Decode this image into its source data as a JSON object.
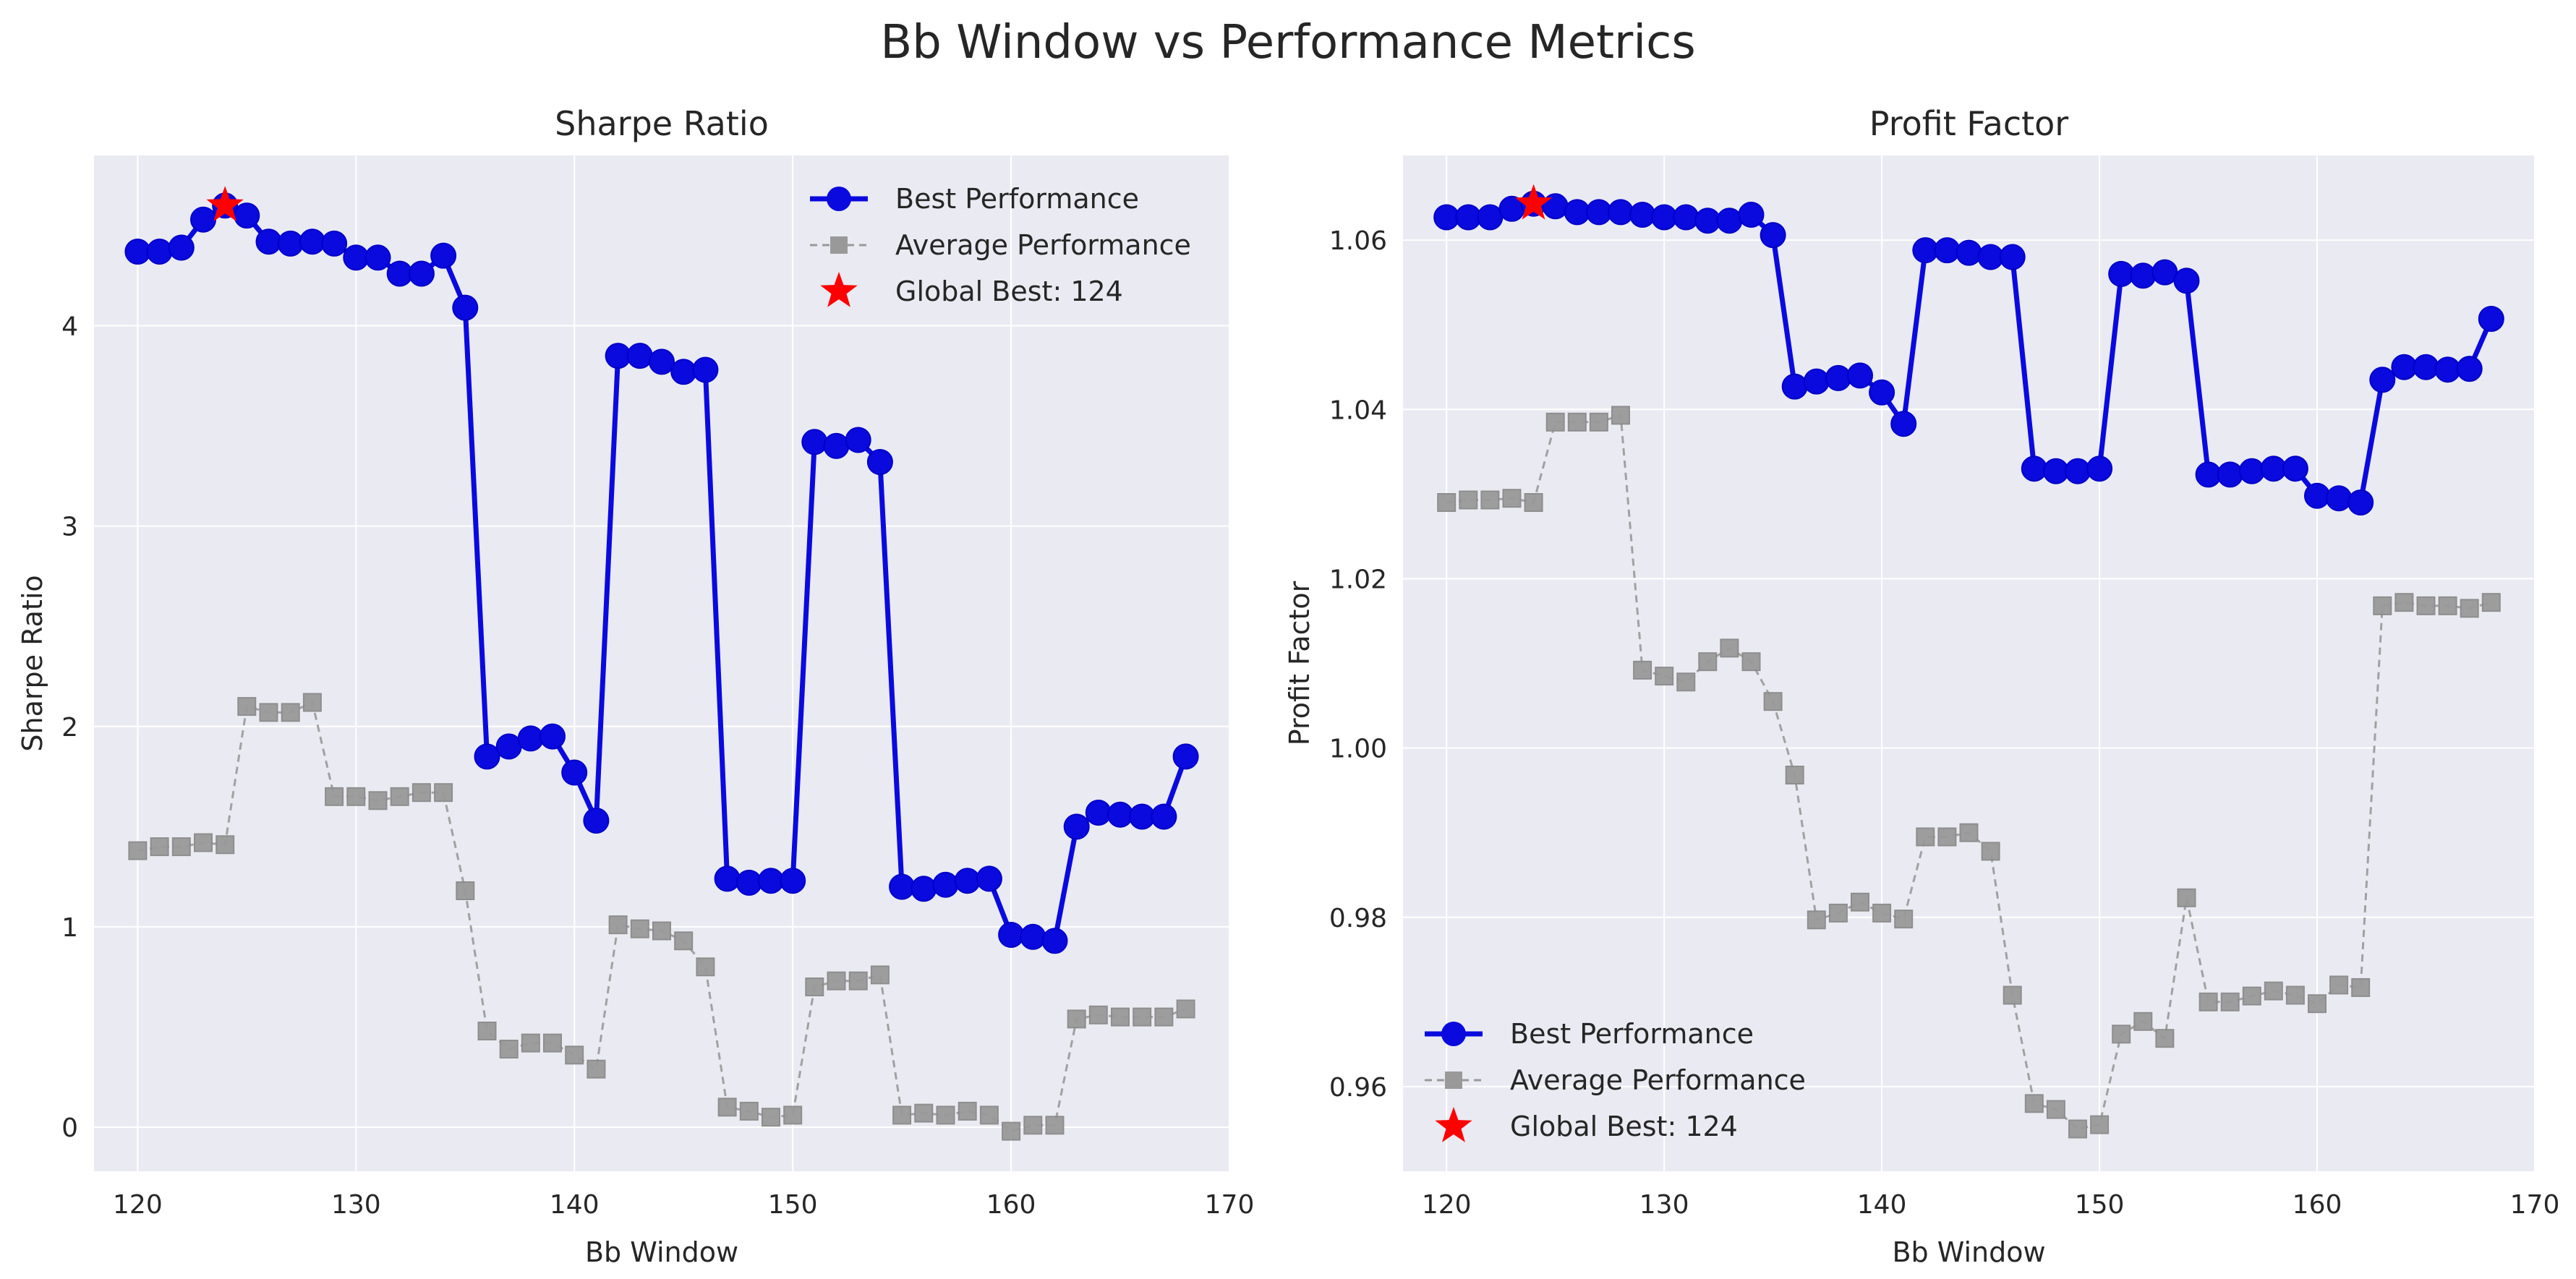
{
  "figure": {
    "title": "Bb Window vs Performance Metrics"
  },
  "colors": {
    "best": "#0a0adf",
    "average": "#999999",
    "global_best": "#ff0000",
    "plot_bg": "#eaeaf2",
    "grid": "#ffffff"
  },
  "chart_data": [
    {
      "type": "line",
      "title": "Sharpe Ratio",
      "xlabel": "Bb Window",
      "ylabel": "Sharpe Ratio",
      "xlim": [
        118,
        170
      ],
      "ylim": [
        -0.22,
        4.85
      ],
      "xticks": [
        120,
        130,
        140,
        150,
        160,
        170
      ],
      "yticks": [
        0,
        1,
        2,
        3,
        4
      ],
      "grid": true,
      "legend_position": "top-right",
      "x": [
        120,
        121,
        122,
        123,
        124,
        125,
        126,
        127,
        128,
        129,
        130,
        131,
        132,
        133,
        134,
        135,
        136,
        137,
        138,
        139,
        140,
        141,
        142,
        143,
        144,
        145,
        146,
        147,
        148,
        149,
        150,
        151,
        152,
        153,
        154,
        155,
        156,
        157,
        158,
        159,
        160,
        161,
        162,
        163,
        164,
        165,
        166,
        167,
        168
      ],
      "series": [
        {
          "name": "Best Performance",
          "style": "solid-circle",
          "values": [
            4.37,
            4.37,
            4.39,
            4.53,
            4.6,
            4.55,
            4.42,
            4.41,
            4.42,
            4.41,
            4.34,
            4.34,
            4.26,
            4.26,
            4.35,
            4.09,
            1.85,
            1.9,
            1.94,
            1.95,
            1.77,
            1.53,
            3.85,
            3.85,
            3.82,
            3.77,
            3.78,
            1.24,
            1.22,
            1.23,
            1.23,
            3.42,
            3.4,
            3.43,
            3.32,
            1.2,
            1.19,
            1.21,
            1.23,
            1.24,
            0.96,
            0.95,
            0.93,
            1.5,
            1.57,
            1.56,
            1.55,
            1.55,
            1.85
          ]
        },
        {
          "name": "Average Performance",
          "style": "dashed-square",
          "values": [
            1.38,
            1.4,
            1.4,
            1.42,
            1.41,
            2.1,
            2.07,
            2.07,
            2.12,
            1.65,
            1.65,
            1.63,
            1.65,
            1.67,
            1.67,
            1.18,
            0.48,
            0.39,
            0.42,
            0.42,
            0.36,
            0.29,
            1.01,
            0.99,
            0.98,
            0.93,
            0.8,
            0.1,
            0.08,
            0.05,
            0.06,
            0.7,
            0.73,
            0.73,
            0.76,
            0.06,
            0.07,
            0.06,
            0.08,
            0.06,
            -0.02,
            0.01,
            0.01,
            0.54,
            0.56,
            0.55,
            0.55,
            0.55,
            0.59
          ]
        }
      ],
      "global_best": {
        "label": "Global Best: 124",
        "x": 124,
        "y": 4.6
      }
    },
    {
      "type": "line",
      "title": "Profit Factor",
      "xlabel": "Bb Window",
      "ylabel": "Profit Factor",
      "xlim": [
        118,
        170
      ],
      "ylim": [
        0.95,
        1.07
      ],
      "xticks": [
        120,
        130,
        140,
        150,
        160,
        170
      ],
      "yticks": [
        0.96,
        0.98,
        1.0,
        1.02,
        1.04,
        1.06
      ],
      "ytick_labels": [
        "0.96",
        "0.98",
        "1.00",
        "1.02",
        "1.04",
        "1.06"
      ],
      "grid": true,
      "legend_position": "bottom-left",
      "x": [
        120,
        121,
        122,
        123,
        124,
        125,
        126,
        127,
        128,
        129,
        130,
        131,
        132,
        133,
        134,
        135,
        136,
        137,
        138,
        139,
        140,
        141,
        142,
        143,
        144,
        145,
        146,
        147,
        148,
        149,
        150,
        151,
        152,
        153,
        154,
        155,
        156,
        157,
        158,
        159,
        160,
        161,
        162,
        163,
        164,
        165,
        166,
        167,
        168
      ],
      "series": [
        {
          "name": "Best Performance",
          "style": "solid-circle",
          "values": [
            1.0627,
            1.0627,
            1.0627,
            1.0637,
            1.0643,
            1.064,
            1.0633,
            1.0633,
            1.0633,
            1.063,
            1.0627,
            1.0627,
            1.0623,
            1.0623,
            1.063,
            1.0606,
            1.0427,
            1.0433,
            1.0437,
            1.044,
            1.042,
            1.0383,
            1.0588,
            1.0588,
            1.0585,
            1.058,
            1.058,
            1.033,
            1.0327,
            1.0327,
            1.033,
            1.056,
            1.0558,
            1.0562,
            1.0552,
            1.0323,
            1.0323,
            1.0327,
            1.033,
            1.033,
            1.0298,
            1.0295,
            1.029,
            1.0435,
            1.045,
            1.045,
            1.0447,
            1.0448,
            1.0507
          ]
        },
        {
          "name": "Average Performance",
          "style": "dashed-square",
          "values": [
            1.029,
            1.0293,
            1.0293,
            1.0295,
            1.029,
            1.0385,
            1.0385,
            1.0385,
            1.0393,
            1.0092,
            1.0085,
            1.0078,
            1.0102,
            1.0118,
            1.0102,
            1.0055,
            0.9968,
            0.9797,
            0.9805,
            0.9818,
            0.9805,
            0.9798,
            0.9895,
            0.9895,
            0.99,
            0.9878,
            0.9708,
            0.958,
            0.9573,
            0.955,
            0.9555,
            0.9662,
            0.9677,
            0.9657,
            0.9823,
            0.97,
            0.97,
            0.9707,
            0.9713,
            0.9708,
            0.9698,
            0.972,
            0.9717,
            1.0168,
            1.0172,
            1.0168,
            1.0168,
            1.0165,
            1.0172
          ]
        }
      ],
      "global_best": {
        "label": "Global Best: 124",
        "x": 124,
        "y": 1.0643
      }
    }
  ]
}
